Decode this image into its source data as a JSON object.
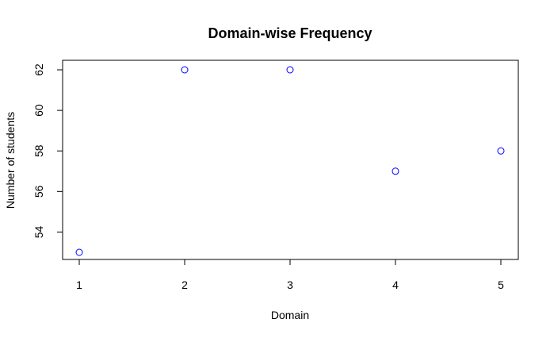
{
  "chart_data": {
    "type": "scatter",
    "title": "Domain-wise Frequency",
    "xlabel": "Domain",
    "ylabel": "Number of students",
    "x": [
      1,
      2,
      3,
      4,
      5
    ],
    "y": [
      53,
      62,
      62,
      57,
      58
    ],
    "xticks": [
      "1",
      "2",
      "3",
      "4",
      "5"
    ],
    "yticks": [
      "54",
      "56",
      "58",
      "60",
      "62"
    ],
    "xlim": [
      1,
      5
    ],
    "ylim": [
      53,
      62
    ],
    "grid": false,
    "point_color": "#0000ff"
  }
}
